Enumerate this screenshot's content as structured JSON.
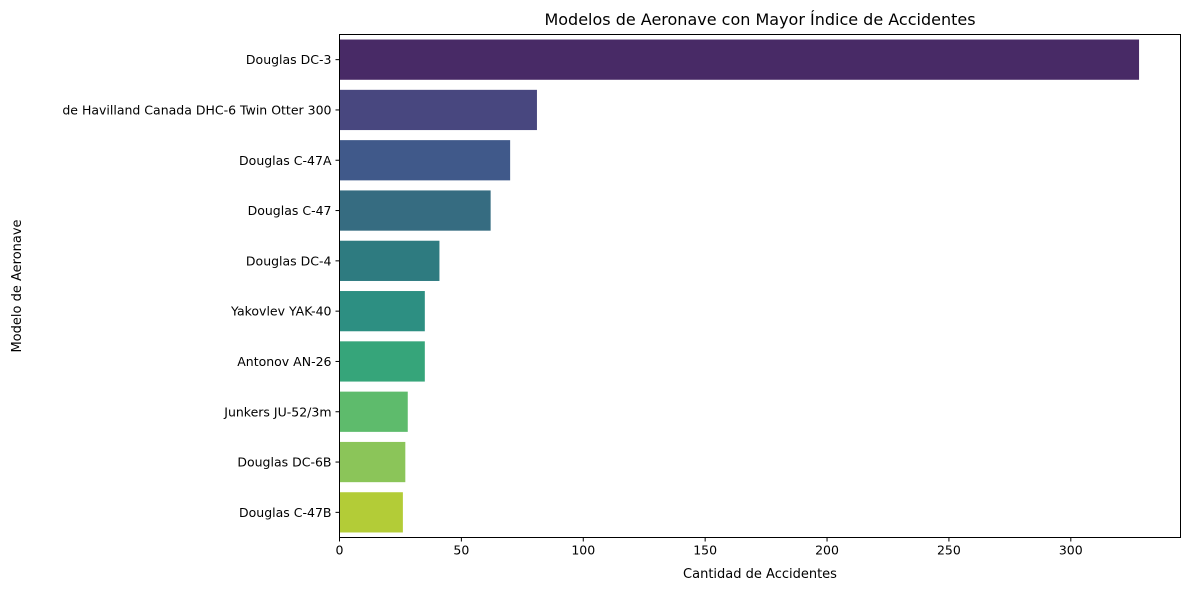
{
  "chart_data": {
    "type": "bar",
    "orientation": "horizontal",
    "title": "Modelos de Aeronave con Mayor Índice de Accidentes",
    "xlabel": "Cantidad de Accidentes",
    "ylabel": "Modelo de Aeronave",
    "xlim": [
      0,
      345
    ],
    "xticks": [
      0,
      50,
      100,
      150,
      200,
      250,
      300
    ],
    "grid": false,
    "categories": [
      "Douglas DC-3",
      "de Havilland Canada DHC-6 Twin Otter 300",
      "Douglas C-47A",
      "Douglas C-47",
      "Douglas DC-4",
      "Yakovlev YAK-40",
      "Antonov AN-26",
      "Junkers JU-52/3m",
      "Douglas DC-6B",
      "Douglas C-47B"
    ],
    "values": [
      328,
      81,
      70,
      62,
      41,
      35,
      35,
      28,
      27,
      26
    ],
    "colors": [
      "#482a66",
      "#48477f",
      "#40598a",
      "#366c81",
      "#2e7b80",
      "#2d8f82",
      "#36a57a",
      "#5ebb6c",
      "#8bc559",
      "#b3cc37"
    ]
  }
}
